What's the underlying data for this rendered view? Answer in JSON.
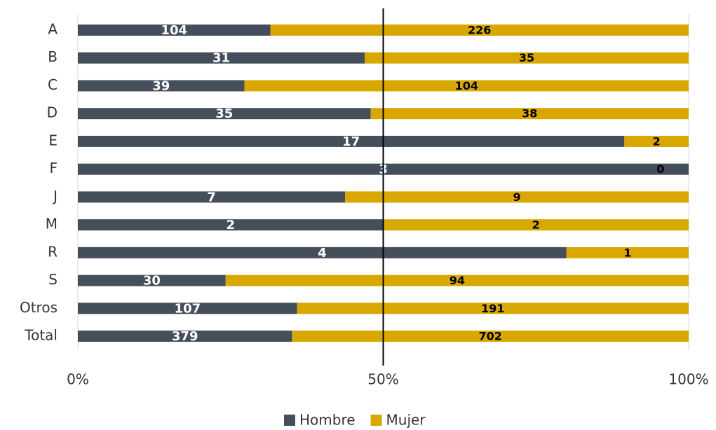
{
  "chart_data": {
    "type": "stacked-bar-100",
    "orientation": "horizontal",
    "categories": [
      "A",
      "B",
      "C",
      "D",
      "E",
      "F",
      "J",
      "M",
      "R",
      "S",
      "Otros",
      "Total"
    ],
    "series": [
      {
        "name": "Hombre",
        "color": "#444f5b",
        "values": [
          104,
          31,
          39,
          35,
          17,
          3,
          7,
          2,
          4,
          30,
          107,
          379
        ]
      },
      {
        "name": "Mujer",
        "color": "#d9a800",
        "values": [
          226,
          35,
          104,
          38,
          2,
          0,
          9,
          2,
          1,
          94,
          191,
          702
        ]
      }
    ],
    "xlim": [
      0,
      100
    ],
    "xticks": [
      {
        "value": 0,
        "label": "0%"
      },
      {
        "value": 50,
        "label": "50%"
      },
      {
        "value": 100,
        "label": "100%"
      }
    ],
    "reference_line": 50,
    "legend": "bottom"
  }
}
